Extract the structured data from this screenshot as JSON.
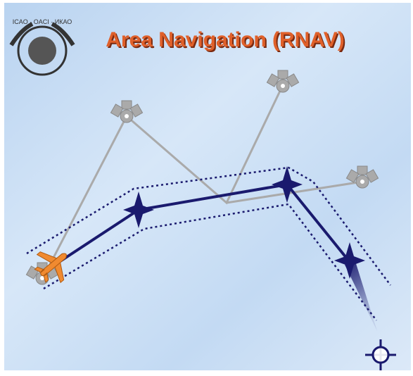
{
  "header": {
    "title": "Area Navigation (RNAV)",
    "logo_text": "ICAO · OACI · ИКАО"
  }
}
